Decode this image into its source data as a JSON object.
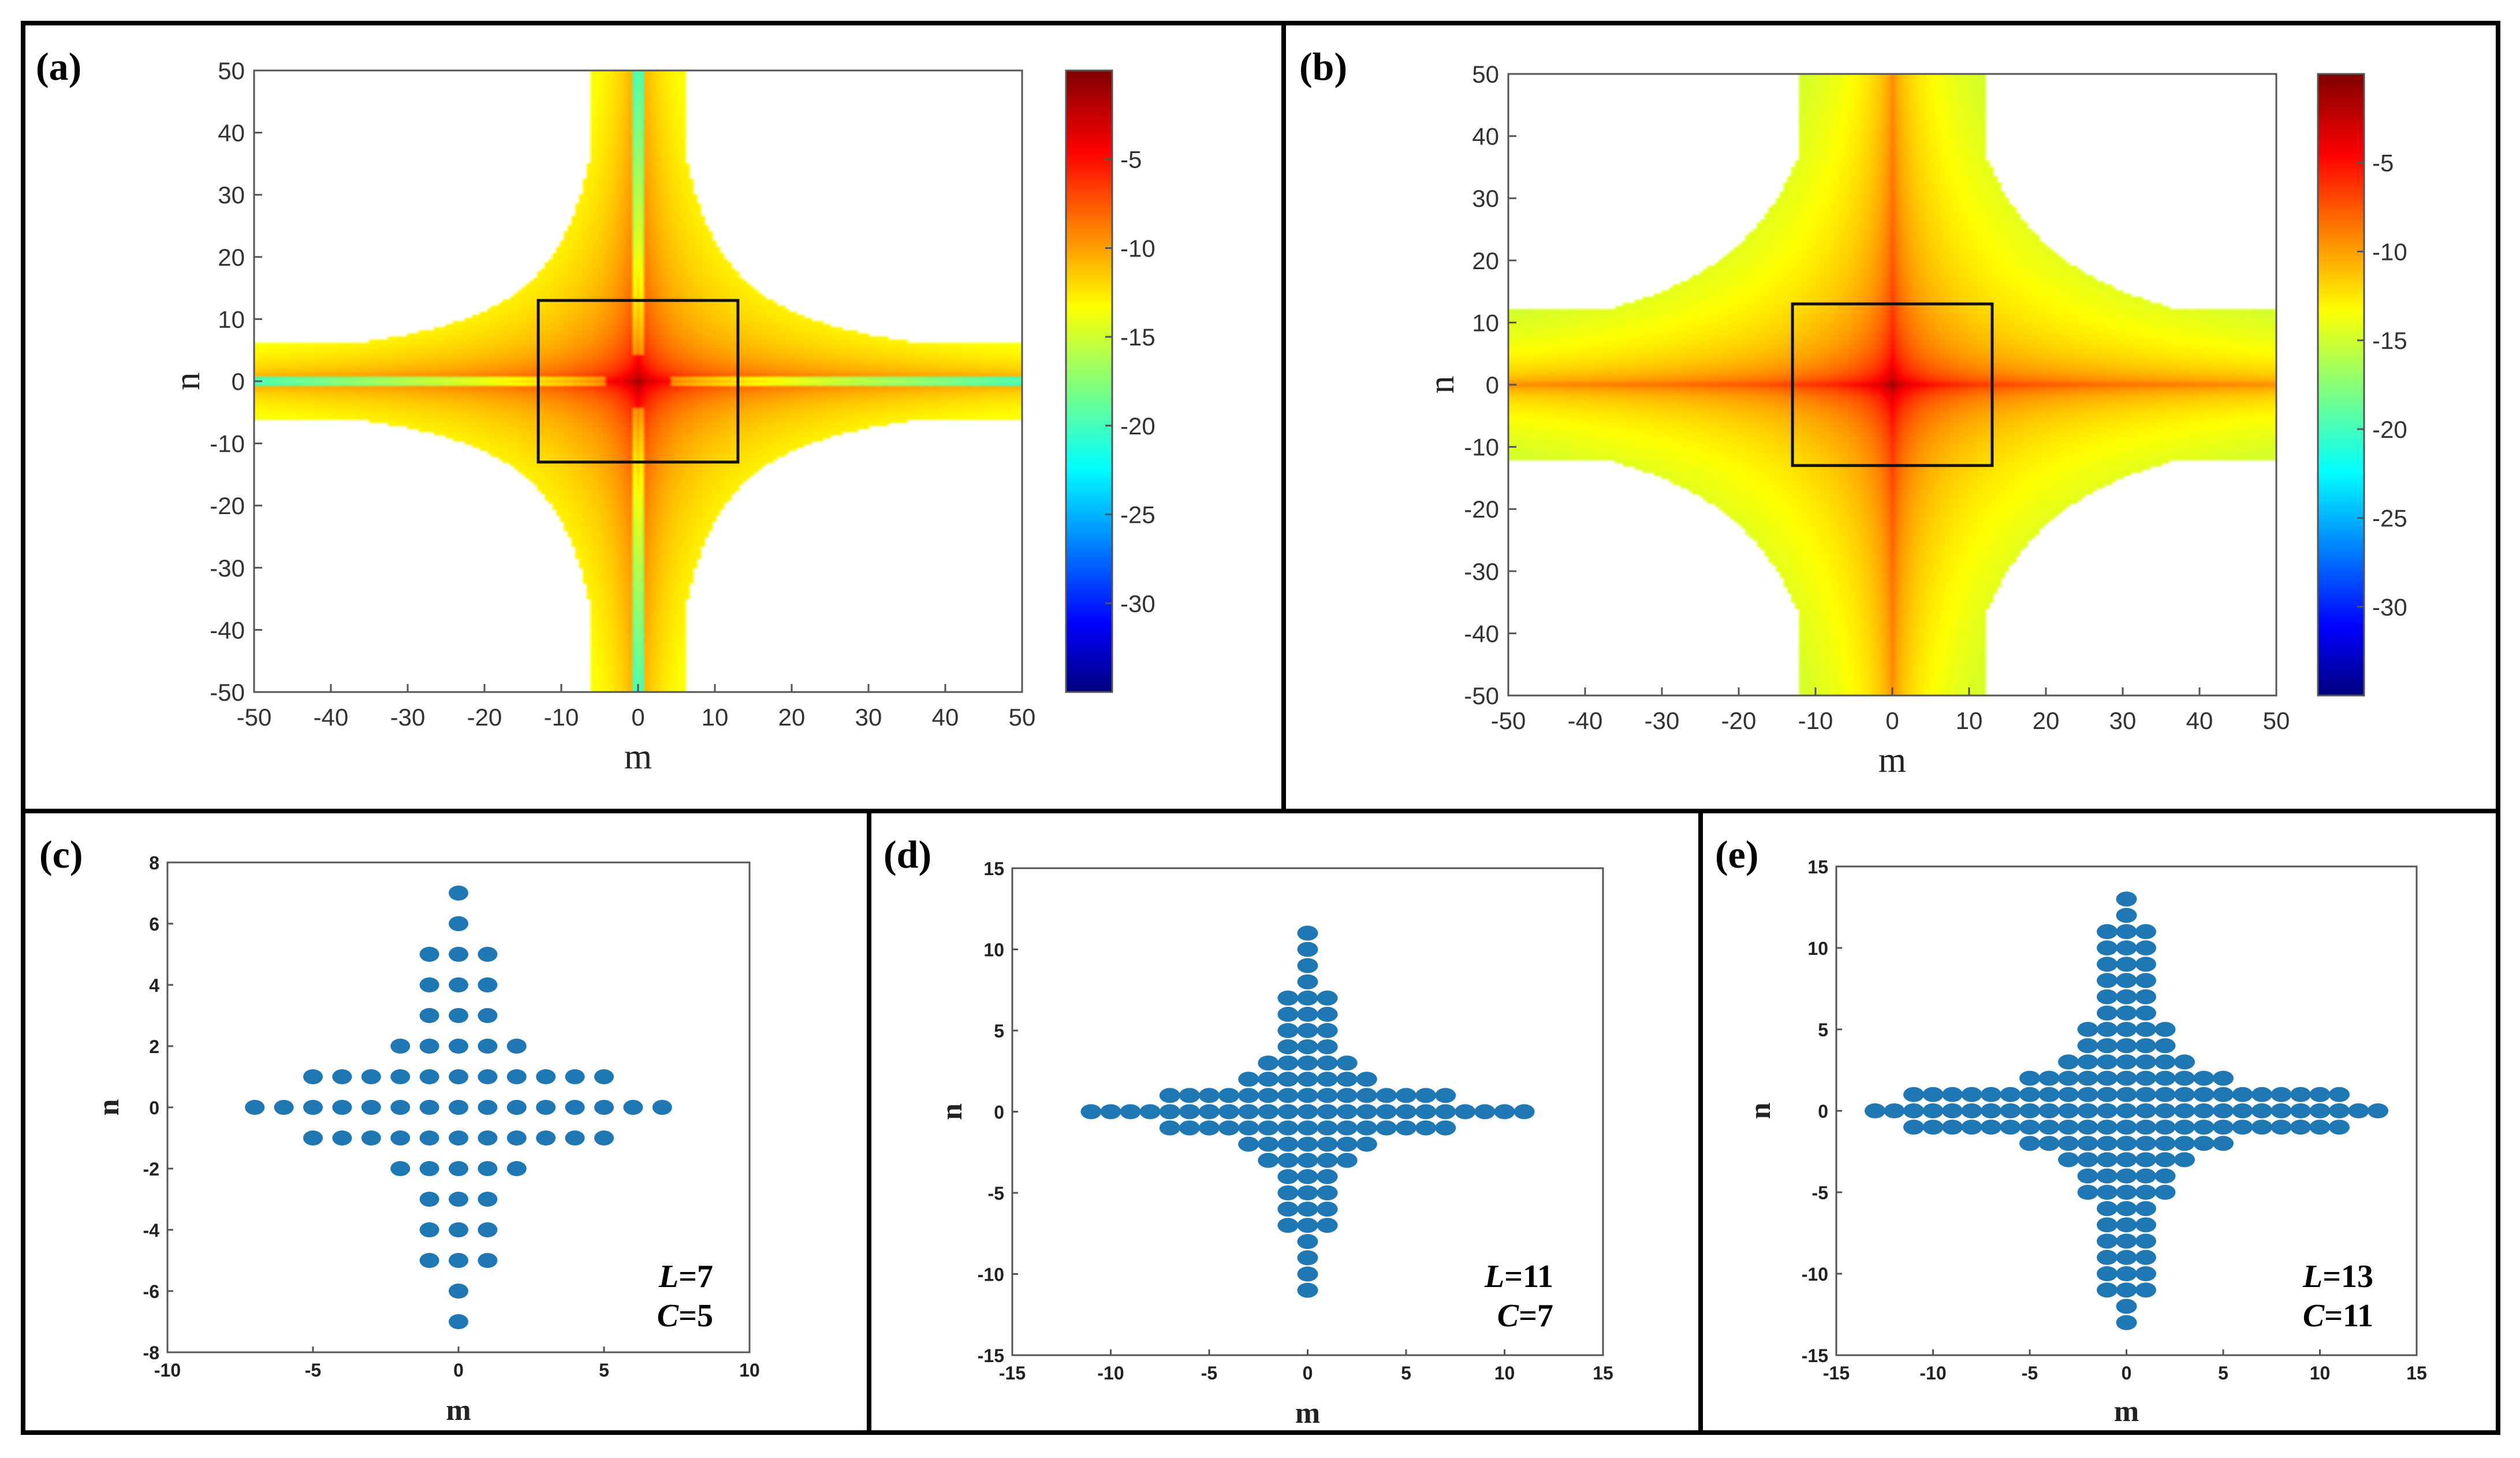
{
  "chart_data": [
    {
      "panel": "(a)",
      "type": "heatmap",
      "xlabel": "m",
      "ylabel": "n",
      "xlim": [
        -50,
        50
      ],
      "ylim": [
        -50,
        50
      ],
      "xticks": [
        "-50",
        "-40",
        "-30",
        "-20",
        "-10",
        "0",
        "10",
        "20",
        "30",
        "40",
        "50"
      ],
      "yticks": [
        "50",
        "40",
        "30",
        "20",
        "10",
        "0",
        "-10",
        "-20",
        "-30",
        "-40",
        "-50"
      ],
      "colorbar_ticks": [
        "-5",
        "-10",
        "-15",
        "-20",
        "-25",
        "-30"
      ],
      "colorbar_values": [
        -5,
        -10,
        -15,
        -20,
        -25,
        -30
      ],
      "colorbar_range": [
        -35,
        0
      ],
      "cutoff": 6,
      "zoom_box": {
        "m": [
          -13,
          13
        ],
        "n": [
          -13,
          13
        ]
      }
    },
    {
      "panel": "(b)",
      "type": "heatmap",
      "xlabel": "m",
      "ylabel": "n",
      "xlim": [
        -50,
        50
      ],
      "ylim": [
        -50,
        50
      ],
      "xticks": [
        "-50",
        "-40",
        "-30",
        "-20",
        "-10",
        "0",
        "10",
        "20",
        "30",
        "40",
        "50"
      ],
      "yticks": [
        "50",
        "40",
        "30",
        "20",
        "10",
        "0",
        "-10",
        "-20",
        "-30",
        "-40",
        "-50"
      ],
      "colorbar_ticks": [
        "-5",
        "-10",
        "-15",
        "-20",
        "-25",
        "-30"
      ],
      "colorbar_values": [
        -5,
        -10,
        -15,
        -20,
        -25,
        -30
      ],
      "colorbar_range": [
        -35,
        0
      ],
      "cutoff": 12,
      "zoom_box": {
        "m": [
          -13,
          13
        ],
        "n": [
          -13,
          13
        ]
      }
    },
    {
      "panel": "(c)",
      "type": "scatter",
      "xlabel": "m",
      "ylabel": "n",
      "xlim": [
        -10,
        10
      ],
      "ylim": [
        -8,
        8
      ],
      "xticks": [
        "-10",
        "-5",
        "0",
        "5",
        "10"
      ],
      "xtick_values": [
        -10,
        -5,
        0,
        5,
        10
      ],
      "yticks": [
        "8",
        "6",
        "4",
        "2",
        "0",
        "-2",
        "-4",
        "-6",
        "-8"
      ],
      "ytick_values": [
        8,
        6,
        4,
        2,
        0,
        -2,
        -4,
        -6,
        -8
      ],
      "L": 7,
      "C": 5,
      "annotation_L": "=7",
      "annotation_C": "=5",
      "rows": [
        {
          "n": 7,
          "m": [
            0
          ]
        },
        {
          "n": 6,
          "m": [
            0
          ]
        },
        {
          "n": 5,
          "m": [
            -1,
            0,
            1
          ]
        },
        {
          "n": 4,
          "m": [
            -1,
            0,
            1
          ]
        },
        {
          "n": 3,
          "m": [
            -1,
            0,
            1
          ]
        },
        {
          "n": 2,
          "m": [
            -2,
            -1,
            0,
            1,
            2
          ]
        },
        {
          "n": 1,
          "m": [
            -5,
            -4,
            -3,
            -2,
            -1,
            0,
            1,
            2,
            3,
            4,
            5
          ]
        },
        {
          "n": 0,
          "m": [
            -7,
            -6,
            -5,
            -4,
            -3,
            -2,
            -1,
            0,
            1,
            2,
            3,
            4,
            5,
            6,
            7
          ]
        },
        {
          "n": -1,
          "m": [
            -5,
            -4,
            -3,
            -2,
            -1,
            0,
            1,
            2,
            3,
            4,
            5
          ]
        },
        {
          "n": -2,
          "m": [
            -2,
            -1,
            0,
            1,
            2
          ]
        },
        {
          "n": -3,
          "m": [
            -1,
            0,
            1
          ]
        },
        {
          "n": -4,
          "m": [
            -1,
            0,
            1
          ]
        },
        {
          "n": -5,
          "m": [
            -1,
            0,
            1
          ]
        },
        {
          "n": -6,
          "m": [
            0
          ]
        },
        {
          "n": -7,
          "m": [
            0
          ]
        }
      ]
    },
    {
      "panel": "(d)",
      "type": "scatter",
      "xlabel": "m",
      "ylabel": "n",
      "xlim": [
        -15,
        15
      ],
      "ylim": [
        -15,
        15
      ],
      "xticks": [
        "-15",
        "-10",
        "-5",
        "0",
        "5",
        "10",
        "15"
      ],
      "xtick_values": [
        -15,
        -10,
        -5,
        0,
        5,
        10,
        15
      ],
      "yticks": [
        "15",
        "10",
        "5",
        "0",
        "-5",
        "-10",
        "-15"
      ],
      "ytick_values": [
        15,
        10,
        5,
        0,
        -5,
        -10,
        -15
      ],
      "L": 11,
      "C": 7,
      "annotation_L": "=11",
      "annotation_C": "=7",
      "rows": [
        {
          "n": 11,
          "m": [
            0
          ]
        },
        {
          "n": 10,
          "m": [
            0
          ]
        },
        {
          "n": 9,
          "m": [
            0
          ]
        },
        {
          "n": 8,
          "m": [
            0
          ]
        },
        {
          "n": 7,
          "m": [
            -1,
            0,
            1
          ]
        },
        {
          "n": 6,
          "m": [
            -1,
            0,
            1
          ]
        },
        {
          "n": 5,
          "m": [
            -1,
            0,
            1
          ]
        },
        {
          "n": 4,
          "m": [
            -1,
            0,
            1
          ]
        },
        {
          "n": 3,
          "m": [
            -2,
            -1,
            0,
            1,
            2
          ]
        },
        {
          "n": 2,
          "m": [
            -3,
            -2,
            -1,
            0,
            1,
            2,
            3
          ]
        },
        {
          "n": 1,
          "m": [
            -7,
            -6,
            -5,
            -4,
            -3,
            -2,
            -1,
            0,
            1,
            2,
            3,
            4,
            5,
            6,
            7
          ]
        },
        {
          "n": 0,
          "m": [
            -11,
            -10,
            -9,
            -8,
            -7,
            -6,
            -5,
            -4,
            -3,
            -2,
            -1,
            0,
            1,
            2,
            3,
            4,
            5,
            6,
            7,
            8,
            9,
            10,
            11
          ]
        },
        {
          "n": -1,
          "m": [
            -7,
            -6,
            -5,
            -4,
            -3,
            -2,
            -1,
            0,
            1,
            2,
            3,
            4,
            5,
            6,
            7
          ]
        },
        {
          "n": -2,
          "m": [
            -3,
            -2,
            -1,
            0,
            1,
            2,
            3
          ]
        },
        {
          "n": -3,
          "m": [
            -2,
            -1,
            0,
            1,
            2
          ]
        },
        {
          "n": -4,
          "m": [
            -1,
            0,
            1
          ]
        },
        {
          "n": -5,
          "m": [
            -1,
            0,
            1
          ]
        },
        {
          "n": -6,
          "m": [
            -1,
            0,
            1
          ]
        },
        {
          "n": -7,
          "m": [
            -1,
            0,
            1
          ]
        },
        {
          "n": -8,
          "m": [
            0
          ]
        },
        {
          "n": -9,
          "m": [
            0
          ]
        },
        {
          "n": -10,
          "m": [
            0
          ]
        },
        {
          "n": -11,
          "m": [
            0
          ]
        }
      ]
    },
    {
      "panel": "(e)",
      "type": "scatter",
      "xlabel": "m",
      "ylabel": "n",
      "xlim": [
        -15,
        15
      ],
      "ylim": [
        -15,
        15
      ],
      "xticks": [
        "-15",
        "-10",
        "-5",
        "0",
        "5",
        "10",
        "15"
      ],
      "xtick_values": [
        -15,
        -10,
        -5,
        0,
        5,
        10,
        15
      ],
      "yticks": [
        "15",
        "10",
        "5",
        "0",
        "-5",
        "-10",
        "-15"
      ],
      "ytick_values": [
        15,
        10,
        5,
        0,
        -5,
        -10,
        -15
      ],
      "L": 13,
      "C": 11,
      "annotation_L": "=13",
      "annotation_C": "=11",
      "rows": [
        {
          "n": 13,
          "m": [
            0
          ]
        },
        {
          "n": 12,
          "m": [
            0
          ]
        },
        {
          "n": 11,
          "m": [
            -1,
            0,
            1
          ]
        },
        {
          "n": 10,
          "m": [
            -1,
            0,
            1
          ]
        },
        {
          "n": 9,
          "m": [
            -1,
            0,
            1
          ]
        },
        {
          "n": 8,
          "m": [
            -1,
            0,
            1
          ]
        },
        {
          "n": 7,
          "m": [
            -1,
            0,
            1
          ]
        },
        {
          "n": 6,
          "m": [
            -1,
            0,
            1
          ]
        },
        {
          "n": 5,
          "m": [
            -2,
            -1,
            0,
            1,
            2
          ]
        },
        {
          "n": 4,
          "m": [
            -2,
            -1,
            0,
            1,
            2
          ]
        },
        {
          "n": 3,
          "m": [
            -3,
            -2,
            -1,
            0,
            1,
            2,
            3
          ]
        },
        {
          "n": 2,
          "m": [
            -5,
            -4,
            -3,
            -2,
            -1,
            0,
            1,
            2,
            3,
            4,
            5
          ]
        },
        {
          "n": 1,
          "m": [
            -11,
            -10,
            -9,
            -8,
            -7,
            -6,
            -5,
            -4,
            -3,
            -2,
            -1,
            0,
            1,
            2,
            3,
            4,
            5,
            6,
            7,
            8,
            9,
            10,
            11
          ]
        },
        {
          "n": 0,
          "m": [
            -13,
            -12,
            -11,
            -10,
            -9,
            -8,
            -7,
            -6,
            -5,
            -4,
            -3,
            -2,
            -1,
            0,
            1,
            2,
            3,
            4,
            5,
            6,
            7,
            8,
            9,
            10,
            11,
            12,
            13
          ]
        },
        {
          "n": -1,
          "m": [
            -11,
            -10,
            -9,
            -8,
            -7,
            -6,
            -5,
            -4,
            -3,
            -2,
            -1,
            0,
            1,
            2,
            3,
            4,
            5,
            6,
            7,
            8,
            9,
            10,
            11
          ]
        },
        {
          "n": -2,
          "m": [
            -5,
            -4,
            -3,
            -2,
            -1,
            0,
            1,
            2,
            3,
            4,
            5
          ]
        },
        {
          "n": -3,
          "m": [
            -3,
            -2,
            -1,
            0,
            1,
            2,
            3
          ]
        },
        {
          "n": -4,
          "m": [
            -2,
            -1,
            0,
            1,
            2
          ]
        },
        {
          "n": -5,
          "m": [
            -2,
            -1,
            0,
            1,
            2
          ]
        },
        {
          "n": -6,
          "m": [
            -1,
            0,
            1
          ]
        },
        {
          "n": -7,
          "m": [
            -1,
            0,
            1
          ]
        },
        {
          "n": -8,
          "m": [
            -1,
            0,
            1
          ]
        },
        {
          "n": -9,
          "m": [
            -1,
            0,
            1
          ]
        },
        {
          "n": -10,
          "m": [
            -1,
            0,
            1
          ]
        },
        {
          "n": -11,
          "m": [
            -1,
            0,
            1
          ]
        },
        {
          "n": -12,
          "m": [
            0
          ]
        },
        {
          "n": -13,
          "m": [
            0
          ]
        }
      ]
    }
  ],
  "labels": {
    "a": "(a)",
    "b": "(b)",
    "c": "(c)",
    "d": "(d)",
    "e": "(e)",
    "L": "L",
    "C": "C"
  },
  "colors": {
    "marker": "#1f77b4",
    "frame": "#000000"
  }
}
